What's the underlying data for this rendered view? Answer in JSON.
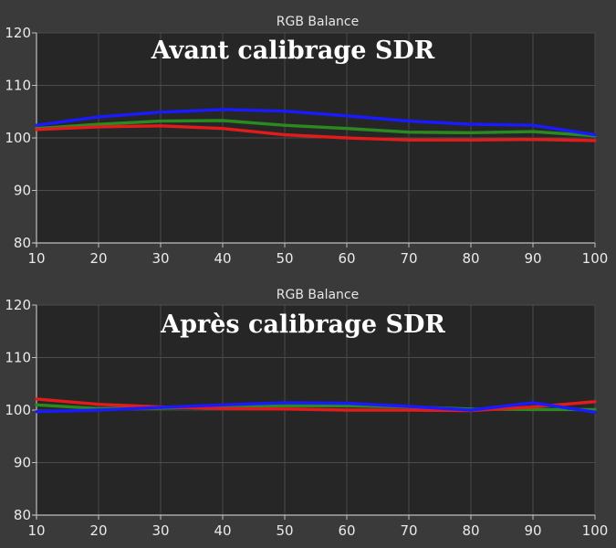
{
  "chart_data": [
    {
      "type": "line",
      "title": "RGB Balance",
      "overlay_text": "Avant calibrage SDR",
      "x": [
        10,
        20,
        30,
        40,
        50,
        60,
        70,
        80,
        90,
        100
      ],
      "xlim": [
        10,
        100
      ],
      "ylim": [
        80,
        120
      ],
      "yticks": [
        80,
        90,
        100,
        110,
        120
      ],
      "grid": true,
      "series": [
        {
          "color": "#2a8a1f",
          "values": [
            101.8,
            102.6,
            103.2,
            103.3,
            102.4,
            101.8,
            101.1,
            101.0,
            101.2,
            100.4
          ]
        },
        {
          "color": "#e31b1b",
          "values": [
            101.6,
            102.1,
            102.3,
            101.8,
            100.6,
            100.0,
            99.6,
            99.6,
            99.7,
            99.5
          ]
        },
        {
          "color": "#1a1aff",
          "values": [
            102.4,
            104.0,
            104.9,
            105.4,
            105.1,
            104.2,
            103.2,
            102.6,
            102.4,
            100.6
          ]
        }
      ]
    },
    {
      "type": "line",
      "title": "RGB Balance",
      "overlay_text": "Après calibrage SDR",
      "x": [
        10,
        20,
        30,
        40,
        50,
        60,
        70,
        80,
        90,
        100
      ],
      "xlim": [
        10,
        100
      ],
      "ylim": [
        80,
        120
      ],
      "yticks": [
        80,
        90,
        100,
        110,
        120
      ],
      "grid": true,
      "series": [
        {
          "color": "#2a8a1f",
          "values": [
            101.0,
            100.3,
            100.4,
            100.6,
            100.8,
            100.8,
            100.6,
            100.2,
            100.1,
            100.1
          ]
        },
        {
          "color": "#e31b1b",
          "values": [
            102.1,
            101.1,
            100.6,
            100.3,
            100.2,
            100.0,
            100.0,
            99.9,
            100.6,
            101.6
          ]
        },
        {
          "color": "#1a1aff",
          "values": [
            99.7,
            100.0,
            100.5,
            101.0,
            101.4,
            101.3,
            100.7,
            100.0,
            101.4,
            99.6
          ]
        }
      ]
    }
  ]
}
